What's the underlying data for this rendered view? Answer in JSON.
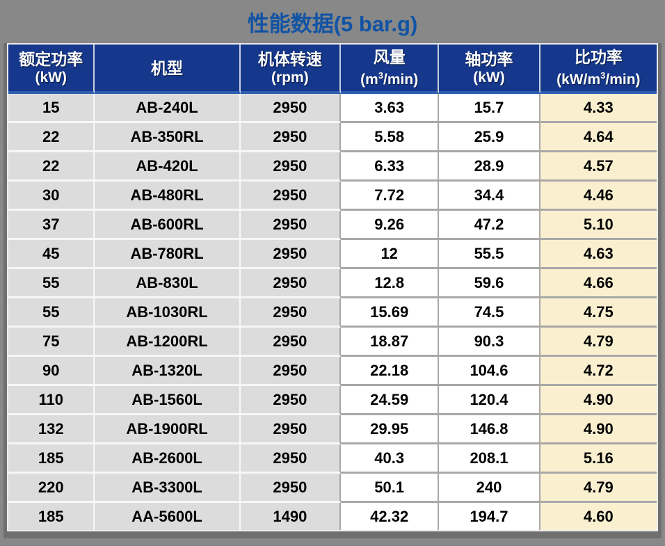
{
  "title": "性能数据(5 bar.g)",
  "colors": {
    "page_bg": "#888888",
    "title_text": "#1153a4",
    "header_bg": "#15388c",
    "header_text": "#ffffff",
    "band_gray": "#dcdcdc",
    "band_white": "#ffffff",
    "highlight_column": "#faf0d0"
  },
  "chart_data": {
    "type": "table",
    "title": "性能数据(5 bar.g)",
    "columns": [
      {
        "label": "额定功率",
        "unit": "(kW)"
      },
      {
        "label": "机型",
        "unit": ""
      },
      {
        "label": "机体转速",
        "unit": "(rpm)"
      },
      {
        "label": "风量",
        "unit": "(m³/min)"
      },
      {
        "label": "轴功率",
        "unit": "(kW)"
      },
      {
        "label": "比功率",
        "unit": "(kW/m³/min)"
      }
    ],
    "rows": [
      [
        "15",
        "AB-240L",
        "2950",
        "3.63",
        "15.7",
        "4.33"
      ],
      [
        "22",
        "AB-350RL",
        "2950",
        "5.58",
        "25.9",
        "4.64"
      ],
      [
        "22",
        "AB-420L",
        "2950",
        "6.33",
        "28.9",
        "4.57"
      ],
      [
        "30",
        "AB-480RL",
        "2950",
        "7.72",
        "34.4",
        "4.46"
      ],
      [
        "37",
        "AB-600RL",
        "2950",
        "9.26",
        "47.2",
        "5.10"
      ],
      [
        "45",
        "AB-780RL",
        "2950",
        "12",
        "55.5",
        "4.63"
      ],
      [
        "55",
        "AB-830L",
        "2950",
        "12.8",
        "59.6",
        "4.66"
      ],
      [
        "55",
        "AB-1030RL",
        "2950",
        "15.69",
        "74.5",
        "4.75"
      ],
      [
        "75",
        "AB-1200RL",
        "2950",
        "18.87",
        "90.3",
        "4.79"
      ],
      [
        "90",
        "AB-1320L",
        "2950",
        "22.18",
        "104.6",
        "4.72"
      ],
      [
        "110",
        "AB-1560L",
        "2950",
        "24.59",
        "120.4",
        "4.90"
      ],
      [
        "132",
        "AB-1900RL",
        "2950",
        "29.95",
        "146.8",
        "4.90"
      ],
      [
        "185",
        "AB-2600L",
        "2950",
        "40.3",
        "208.1",
        "5.16"
      ],
      [
        "220",
        "AB-3300L",
        "2950",
        "50.1",
        "240",
        "4.79"
      ],
      [
        "185",
        "AA-5600L",
        "1490",
        "42.32",
        "194.7",
        "4.60"
      ]
    ]
  }
}
